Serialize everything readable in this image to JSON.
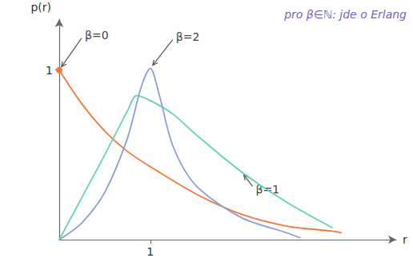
{
  "chart_data": {
    "type": "line",
    "x_label": "r",
    "y_label": "p(r)",
    "xlim": [
      0,
      3.7
    ],
    "ylim": [
      0,
      1.3
    ],
    "xticks": [
      1
    ],
    "yticks": [
      1
    ],
    "grid": false,
    "annotations": [
      {
        "text": "pro β∈ℕ: jde o Erlang"
      }
    ],
    "series": [
      {
        "name": "β=0",
        "color": "#f07a3c",
        "marker": "circle",
        "x": [
          0,
          0.25,
          0.5,
          0.75,
          1,
          1.5,
          2,
          2.5,
          3,
          3.1
        ],
        "values": [
          1,
          0.8,
          0.64,
          0.52,
          0.43,
          0.27,
          0.15,
          0.08,
          0.05,
          0.04
        ]
      },
      {
        "name": "β=1",
        "color": "#5fd6b0",
        "x": [
          0,
          0.25,
          0.5,
          0.75,
          0.85,
          1,
          1.25,
          1.5,
          2,
          2.5,
          3
        ],
        "values": [
          0,
          0.25,
          0.5,
          0.76,
          0.85,
          0.82,
          0.74,
          0.62,
          0.4,
          0.22,
          0.07
        ]
      },
      {
        "name": "β=2",
        "color": "#8c9fd8",
        "x": [
          0,
          0.25,
          0.5,
          0.75,
          0.9,
          1,
          1.1,
          1.25,
          1.5,
          2,
          2.5,
          2.65
        ],
        "values": [
          0,
          0.1,
          0.28,
          0.6,
          0.9,
          1.01,
          0.85,
          0.55,
          0.32,
          0.13,
          0.04,
          0.01
        ]
      }
    ]
  }
}
